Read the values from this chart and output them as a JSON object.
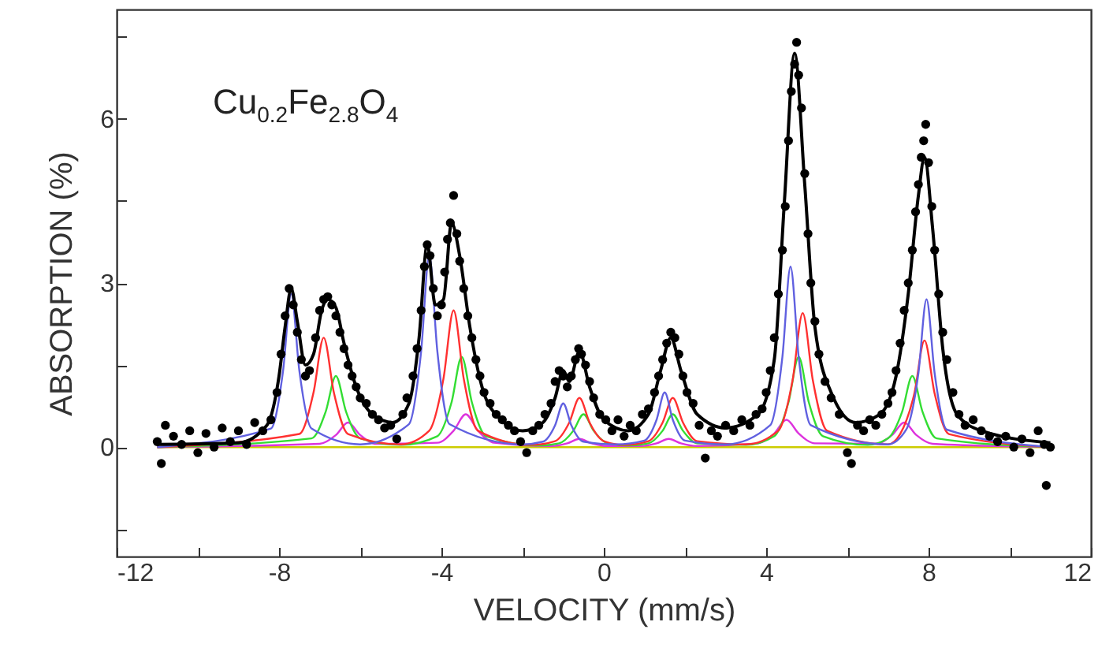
{
  "chart_data": {
    "type": "line",
    "xlabel": "VELOCITY (mm/s)",
    "ylabel": "ABSORPTION (%)",
    "annotations": [
      "Cu$_{0.2}$Fe$_{2.8}$O$_{4}$"
    ],
    "xlim": [
      -12,
      12
    ],
    "xticks": [
      -12,
      {
        "value": -10,
        "label": null
      },
      -8,
      {
        "value": -6,
        "label": null
      },
      -4,
      {
        "value": -2,
        "label": null
      },
      0,
      {
        "value": 2,
        "label": null
      },
      4,
      {
        "value": 6,
        "label": null
      },
      8,
      {
        "value": 10,
        "label": null
      },
      12
    ],
    "ylim": [
      -2,
      8
    ],
    "yticks": [
      {
        "value": -1.5,
        "label": null
      },
      0,
      {
        "value": 1.5,
        "label": null
      },
      3,
      {
        "value": 4.5,
        "label": null
      },
      6,
      {
        "value": 7.5,
        "label": null
      }
    ],
    "grid": false,
    "line_style": "solid",
    "series": [
      {
        "color": "#cccc00",
        "x": [
          -11,
          11
        ],
        "values": [
          0,
          0
        ]
      },
      {
        "color": "#dd33dd",
        "x": [
          -11,
          -7,
          -6.6,
          -6.3,
          -6.0,
          -5.6,
          -4.1,
          -3.7,
          -3.4,
          -3.1,
          -2.7,
          -1.3,
          -0.9,
          -0.6,
          -0.3,
          0.1,
          0.9,
          1.3,
          1.6,
          1.9,
          2.3,
          3.8,
          4.2,
          4.5,
          4.8,
          5.2,
          6.7,
          7.1,
          7.4,
          7.7,
          8.1,
          11
        ],
        "values": [
          0,
          0.06,
          0.22,
          0.45,
          0.22,
          0.06,
          0.08,
          0.3,
          0.6,
          0.3,
          0.08,
          0.02,
          0.07,
          0.15,
          0.07,
          0.02,
          0.02,
          0.07,
          0.15,
          0.07,
          0.02,
          0.07,
          0.25,
          0.5,
          0.25,
          0.07,
          0.06,
          0.22,
          0.45,
          0.22,
          0.06,
          0
        ]
      },
      {
        "color": "#33dd33",
        "x": [
          -11,
          -7.2,
          -6.85,
          -6.6,
          -6.35,
          -6,
          -5,
          -4.1,
          -3.75,
          -3.5,
          -3.25,
          -2.9,
          -1.6,
          -1.1,
          -0.75,
          -0.5,
          -0.25,
          0.1,
          0.6,
          1.1,
          1.45,
          1.7,
          1.95,
          2.3,
          3.5,
          4.2,
          4.55,
          4.8,
          5.05,
          5.4,
          6.5,
          7.0,
          7.35,
          7.6,
          7.85,
          8.2,
          11
        ],
        "values": [
          0,
          0.16,
          0.65,
          1.3,
          0.65,
          0.16,
          0.04,
          0.2,
          0.82,
          1.65,
          0.82,
          0.2,
          0.03,
          0.07,
          0.3,
          0.6,
          0.3,
          0.07,
          0.03,
          0.07,
          0.3,
          0.6,
          0.3,
          0.07,
          0.04,
          0.2,
          0.82,
          1.65,
          0.82,
          0.2,
          0.04,
          0.16,
          0.65,
          1.3,
          0.65,
          0.16,
          0
        ]
      },
      {
        "color": "#ff3030",
        "x": [
          -11,
          -7.5,
          -7.15,
          -6.9,
          -6.65,
          -6.3,
          -5,
          -4.3,
          -3.95,
          -3.7,
          -3.45,
          -3.1,
          -1.8,
          -1.2,
          -0.85,
          -0.6,
          -0.35,
          0,
          0.5,
          1.1,
          1.45,
          1.7,
          1.95,
          2.3,
          3.5,
          4.3,
          4.65,
          4.9,
          5.15,
          5.5,
          7,
          7.3,
          7.65,
          7.9,
          8.15,
          8.5,
          11
        ],
        "values": [
          0,
          0.24,
          1.0,
          2.0,
          1.0,
          0.24,
          0.05,
          0.3,
          1.25,
          2.5,
          1.25,
          0.3,
          0.04,
          0.11,
          0.45,
          0.9,
          0.45,
          0.11,
          0.04,
          0.11,
          0.45,
          0.9,
          0.45,
          0.11,
          0.05,
          0.3,
          1.22,
          2.45,
          1.22,
          0.3,
          0.05,
          0.24,
          0.98,
          1.95,
          0.98,
          0.24,
          0
        ]
      },
      {
        "color": "#6060e0",
        "x": [
          -11,
          -8.2,
          -7.9,
          -7.7,
          -7.5,
          -7.2,
          -6,
          -4.8,
          -4.5,
          -4.3,
          -4.1,
          -3.8,
          -2,
          -1.5,
          -1.2,
          -1.0,
          -0.8,
          -0.5,
          0.3,
          1.0,
          1.3,
          1.5,
          1.7,
          2.0,
          3,
          4.1,
          4.4,
          4.6,
          4.8,
          5.1,
          7,
          7.45,
          7.75,
          7.95,
          8.15,
          8.45,
          11
        ],
        "values": [
          0,
          0.34,
          1.4,
          2.8,
          1.4,
          0.34,
          0.05,
          0.42,
          1.75,
          3.5,
          1.75,
          0.42,
          0.05,
          0.1,
          0.4,
          0.8,
          0.4,
          0.1,
          0.05,
          0.12,
          0.5,
          1.0,
          0.5,
          0.12,
          0.05,
          0.4,
          1.65,
          3.3,
          1.65,
          0.4,
          0.05,
          0.32,
          1.35,
          2.7,
          1.35,
          0.32,
          0
        ]
      },
      {
        "type": "scatter",
        "color": "#000000",
        "marker": "circle",
        "x": [
          -11,
          -10.9,
          -10.8,
          -10.6,
          -10.4,
          -10.2,
          -10.0,
          -9.8,
          -9.6,
          -9.4,
          -9.2,
          -9.0,
          -8.8,
          -8.6,
          -8.4,
          -8.2,
          -8.05,
          -7.95,
          -7.85,
          -7.75,
          -7.65,
          -7.55,
          -7.45,
          -7.35,
          -7.25,
          -7.1,
          -7.0,
          -6.9,
          -6.8,
          -6.7,
          -6.6,
          -6.5,
          -6.4,
          -6.3,
          -6.2,
          -6.1,
          -6.0,
          -5.85,
          -5.7,
          -5.55,
          -5.4,
          -5.25,
          -5.1,
          -4.95,
          -4.85,
          -4.7,
          -4.6,
          -4.5,
          -4.42,
          -4.35,
          -4.28,
          -4.2,
          -4.1,
          -4.0,
          -3.92,
          -3.85,
          -3.78,
          -3.7,
          -3.62,
          -3.55,
          -3.45,
          -3.35,
          -3.25,
          -3.15,
          -3.05,
          -2.95,
          -2.8,
          -2.65,
          -2.5,
          -2.35,
          -2.2,
          -2.05,
          -1.9,
          -1.75,
          -1.6,
          -1.45,
          -1.3,
          -1.2,
          -1.1,
          -1.0,
          -0.9,
          -0.8,
          -0.7,
          -0.62,
          -0.55,
          -0.45,
          -0.35,
          -0.25,
          -0.1,
          0.05,
          0.2,
          0.35,
          0.5,
          0.65,
          0.8,
          0.95,
          1.1,
          1.25,
          1.35,
          1.45,
          1.55,
          1.65,
          1.75,
          1.85,
          1.95,
          2.05,
          2.2,
          2.35,
          2.5,
          2.65,
          2.8,
          3.0,
          3.2,
          3.4,
          3.6,
          3.75,
          3.9,
          4.0,
          4.1,
          4.2,
          4.3,
          4.4,
          4.47,
          4.55,
          4.62,
          4.7,
          4.75,
          4.8,
          4.87,
          4.95,
          5.03,
          5.1,
          5.2,
          5.3,
          5.45,
          5.6,
          5.8,
          6.0,
          6.1,
          6.25,
          6.4,
          6.55,
          6.7,
          6.85,
          7.0,
          7.1,
          7.2,
          7.3,
          7.4,
          7.5,
          7.6,
          7.68,
          7.75,
          7.82,
          7.88,
          7.93,
          8.0,
          8.08,
          8.15,
          8.25,
          8.35,
          8.45,
          8.6,
          8.75,
          8.9,
          9.1,
          9.3,
          9.5,
          9.7,
          9.9,
          10.1,
          10.3,
          10.5,
          10.7,
          10.85,
          10.9,
          11.0
        ],
        "values": [
          0.1,
          -0.3,
          0.4,
          0.2,
          0.05,
          0.3,
          -0.1,
          0.25,
          0.0,
          0.35,
          0.1,
          0.3,
          0.05,
          0.45,
          0.3,
          0.5,
          1.0,
          1.7,
          2.4,
          2.9,
          2.6,
          2.1,
          1.6,
          1.3,
          1.4,
          2.0,
          2.5,
          2.7,
          2.75,
          2.6,
          2.4,
          2.1,
          1.8,
          1.5,
          1.3,
          1.1,
          0.9,
          0.8,
          0.6,
          0.5,
          0.35,
          0.4,
          0.15,
          0.6,
          0.9,
          1.3,
          1.8,
          2.5,
          3.3,
          3.7,
          3.5,
          2.9,
          2.4,
          2.6,
          3.2,
          3.8,
          4.1,
          4.6,
          3.9,
          3.4,
          2.9,
          2.4,
          2.0,
          1.6,
          1.3,
          1.0,
          0.8,
          0.6,
          0.5,
          0.4,
          0.3,
          0.1,
          -0.1,
          0.3,
          0.4,
          0.6,
          0.8,
          1.2,
          1.4,
          1.3,
          1.1,
          1.3,
          1.6,
          1.8,
          1.7,
          1.5,
          1.2,
          0.9,
          0.6,
          0.5,
          0.3,
          0.5,
          0.2,
          0.4,
          0.3,
          0.6,
          0.7,
          1.0,
          1.3,
          1.6,
          1.9,
          2.1,
          2.0,
          1.7,
          1.3,
          1.0,
          0.8,
          0.4,
          -0.2,
          0.3,
          0.2,
          0.4,
          0.3,
          0.5,
          0.4,
          0.6,
          0.7,
          1.0,
          1.4,
          2.0,
          2.8,
          3.6,
          4.4,
          5.6,
          6.5,
          7.0,
          7.4,
          6.8,
          6.2,
          5.0,
          3.9,
          3.0,
          2.3,
          1.7,
          1.2,
          0.9,
          0.6,
          -0.1,
          -0.3,
          0.4,
          0.3,
          0.5,
          0.4,
          0.6,
          0.8,
          1.0,
          1.4,
          1.9,
          2.5,
          3.0,
          3.6,
          4.3,
          4.8,
          5.3,
          5.6,
          5.9,
          5.2,
          4.4,
          3.6,
          2.8,
          2.1,
          1.6,
          1.0,
          0.6,
          0.4,
          0.5,
          0.3,
          0.2,
          0.1,
          0.2,
          0.0,
          0.15,
          -0.1,
          0.3,
          0.05,
          -0.7,
          0.0
        ]
      },
      {
        "color": "#000000",
        "x": [
          -11,
          -9,
          -8.3,
          -8.0,
          -7.85,
          -7.7,
          -7.55,
          -7.35,
          -7.15,
          -6.95,
          -6.8,
          -6.6,
          -6.4,
          -6.1,
          -5.7,
          -5.2,
          -4.8,
          -4.55,
          -4.35,
          -4.15,
          -3.95,
          -3.75,
          -3.55,
          -3.3,
          -3.0,
          -2.6,
          -2.0,
          -1.5,
          -1.2,
          -1.0,
          -0.85,
          -0.6,
          -0.35,
          0,
          0.6,
          1.1,
          1.4,
          1.65,
          1.9,
          2.3,
          3.0,
          3.8,
          4.2,
          4.45,
          4.7,
          4.95,
          5.2,
          5.6,
          6.2,
          6.8,
          7.2,
          7.5,
          7.75,
          7.9,
          8.1,
          8.35,
          8.7,
          9.3,
          11
        ],
        "values": [
          0.05,
          0.08,
          0.4,
          1.3,
          2.2,
          2.9,
          2.3,
          1.5,
          1.7,
          2.5,
          2.7,
          2.55,
          1.9,
          1.1,
          0.6,
          0.45,
          0.8,
          2.0,
          3.7,
          2.6,
          2.7,
          4.1,
          3.5,
          2.2,
          1.1,
          0.55,
          0.3,
          0.45,
          0.9,
          1.4,
          1.2,
          1.75,
          1.1,
          0.5,
          0.3,
          0.6,
          1.4,
          2.0,
          1.4,
          0.6,
          0.35,
          0.6,
          1.6,
          4.5,
          7.2,
          4.8,
          2.2,
          1.0,
          0.45,
          0.6,
          1.3,
          2.8,
          4.6,
          5.3,
          4.0,
          1.8,
          0.6,
          0.3,
          0.08
        ]
      }
    ]
  }
}
